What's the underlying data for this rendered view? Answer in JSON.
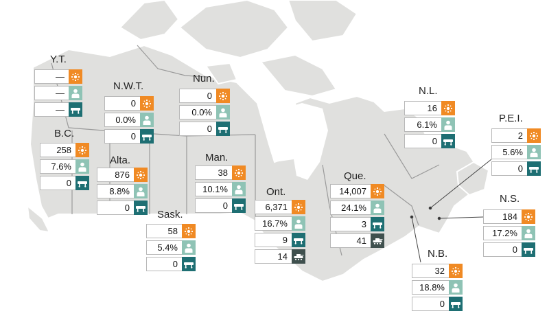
{
  "colors": {
    "cases": "#f08a24",
    "share": "#8fc3b5",
    "deaths": "#1e6f73",
    "military": "#3f504e",
    "land": "#e0e0de",
    "border": "#9a9a9a"
  },
  "icons": {
    "cases": "virus-icon",
    "share": "person-icon",
    "deaths": "stretcher-icon",
    "military": "tank-icon"
  },
  "provinces": {
    "yt": {
      "name": "Y.T.",
      "cases": "—",
      "share": "—",
      "deaths": "—"
    },
    "nwt": {
      "name": "N.W.T.",
      "cases": "0",
      "share": "0.0%",
      "deaths": "0"
    },
    "nun": {
      "name": "Nun.",
      "cases": "0",
      "share": "0.0%",
      "deaths": "0"
    },
    "bc": {
      "name": "B.C.",
      "cases": "258",
      "share": "7.6%",
      "deaths": "0"
    },
    "alta": {
      "name": "Alta.",
      "cases": "876",
      "share": "8.8%",
      "deaths": "0"
    },
    "sask": {
      "name": "Sask.",
      "cases": "58",
      "share": "5.4%",
      "deaths": "0"
    },
    "man": {
      "name": "Man.",
      "cases": "38",
      "share": "10.1%",
      "deaths": "0"
    },
    "ont": {
      "name": "Ont.",
      "cases": "6,371",
      "share": "16.7%",
      "deaths": "9",
      "military": "14"
    },
    "que": {
      "name": "Que.",
      "cases": "14,007",
      "share": "24.1%",
      "deaths": "3",
      "military": "41"
    },
    "nl": {
      "name": "N.L.",
      "cases": "16",
      "share": "6.1%",
      "deaths": "0"
    },
    "pei": {
      "name": "P.E.I.",
      "cases": "2",
      "share": "5.6%",
      "deaths": "0"
    },
    "ns": {
      "name": "N.S.",
      "cases": "184",
      "share": "17.2%",
      "deaths": "0"
    },
    "nb": {
      "name": "N.B.",
      "cases": "32",
      "share": "18.8%",
      "deaths": "0"
    }
  }
}
